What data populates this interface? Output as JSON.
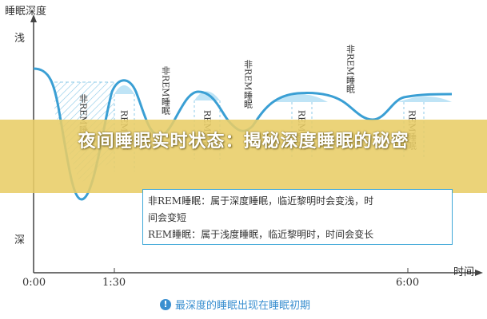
{
  "y_axis_title": "睡眠深度",
  "y_top_label": "浅",
  "y_bottom_label": "深",
  "x_axis_label": "时间",
  "x_ticks": [
    "0:00",
    "1:30",
    "6:00"
  ],
  "stage_labels": {
    "rem": "REM睡眠",
    "non_rem": "非REM睡眠"
  },
  "banner_title": "夜间睡眠实时状态：揭秘深度睡眠的秘密",
  "legend": {
    "line1": "非REM睡眠：属于深度睡眠，临近黎明时会变浅，时",
    "line2": "间会变短",
    "line3": "REM睡眠：属于浅度睡眠，临近黎明时，时间会变长"
  },
  "caption": "最深度的睡眠出现在睡眠初期",
  "caption_icon": "!",
  "colors": {
    "curve": "#3a9fd4",
    "fill": "#bfe4f6",
    "banner": "#e8cd66",
    "axis": "#444444"
  }
}
